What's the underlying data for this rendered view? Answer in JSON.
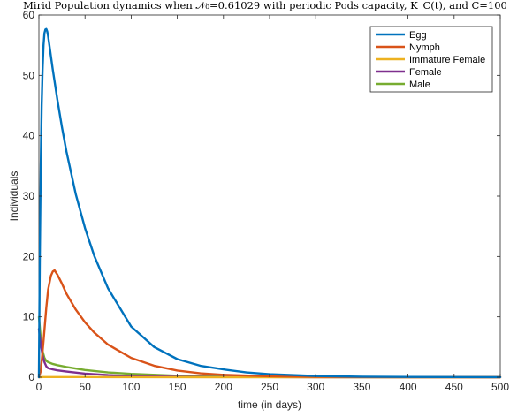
{
  "chart_data": {
    "type": "line",
    "title": "Mirid Population dynamics when 𝒩₀=0.61029 with periodic Pods capacity, K_C(t), and C=100",
    "xlabel": "time (in days)",
    "ylabel": "Individuals",
    "xlim": [
      0,
      500
    ],
    "ylim": [
      0,
      60
    ],
    "xticks": [
      0,
      50,
      100,
      150,
      200,
      250,
      300,
      350,
      400,
      450,
      500
    ],
    "yticks": [
      0,
      10,
      20,
      30,
      40,
      50,
      60
    ],
    "grid": false,
    "legend_position": "top-right",
    "series": [
      {
        "name": "Egg",
        "color": "#0072BD",
        "x": [
          0,
          1,
          2,
          3,
          4,
          5,
          6,
          7,
          8,
          9,
          10,
          12,
          15,
          20,
          25,
          30,
          40,
          50,
          60,
          75,
          100,
          125,
          150,
          175,
          200,
          225,
          250,
          275,
          300,
          350,
          400,
          450,
          500
        ],
        "y": [
          0,
          20,
          35,
          45,
          51,
          55,
          57,
          57.6,
          57.7,
          57.3,
          56.5,
          54.3,
          51.0,
          46.0,
          41.4,
          37.3,
          30.3,
          24.7,
          20.1,
          14.7,
          8.4,
          5.0,
          3.0,
          1.9,
          1.3,
          0.8,
          0.5,
          0.35,
          0.2,
          0.08,
          0.04,
          0.02,
          0.01
        ]
      },
      {
        "name": "Nymph",
        "color": "#D95319",
        "x": [
          0,
          2,
          5,
          8,
          10,
          13,
          15,
          17,
          20,
          25,
          30,
          40,
          50,
          60,
          75,
          100,
          125,
          150,
          175,
          200,
          250,
          300,
          350,
          400,
          450,
          500
        ],
        "y": [
          0,
          1.0,
          6.0,
          11.5,
          14.5,
          16.8,
          17.5,
          17.7,
          17.0,
          15.5,
          13.8,
          11.2,
          9.1,
          7.4,
          5.4,
          3.2,
          1.9,
          1.1,
          0.65,
          0.4,
          0.15,
          0.06,
          0.03,
          0.01,
          0.01,
          0.0
        ]
      },
      {
        "name": "Immature Female",
        "color": "#EDB120",
        "x": [
          0,
          5,
          10,
          20,
          50,
          100,
          200,
          300,
          400,
          500
        ],
        "y": [
          0,
          0.02,
          0.03,
          0.03,
          0.02,
          0.01,
          0.0,
          0.0,
          0.0,
          0.0
        ]
      },
      {
        "name": "Female",
        "color": "#7E2F8E",
        "x": [
          0,
          2,
          4,
          6,
          8,
          10,
          15,
          20,
          30,
          50,
          75,
          100,
          150,
          200,
          250,
          300,
          400,
          500
        ],
        "y": [
          8.0,
          5.5,
          3.6,
          2.5,
          1.8,
          1.5,
          1.3,
          1.15,
          0.95,
          0.6,
          0.35,
          0.2,
          0.08,
          0.04,
          0.02,
          0.0,
          0.0,
          0.0
        ]
      },
      {
        "name": "Male",
        "color": "#77AC30",
        "x": [
          0,
          2,
          4,
          6,
          8,
          10,
          15,
          20,
          30,
          50,
          75,
          100,
          150,
          200,
          250,
          300,
          400,
          500
        ],
        "y": [
          10.0,
          6.5,
          4.3,
          3.2,
          2.7,
          2.5,
          2.2,
          2.0,
          1.7,
          1.2,
          0.8,
          0.55,
          0.25,
          0.12,
          0.06,
          0.02,
          0.0,
          0.0
        ]
      }
    ]
  }
}
